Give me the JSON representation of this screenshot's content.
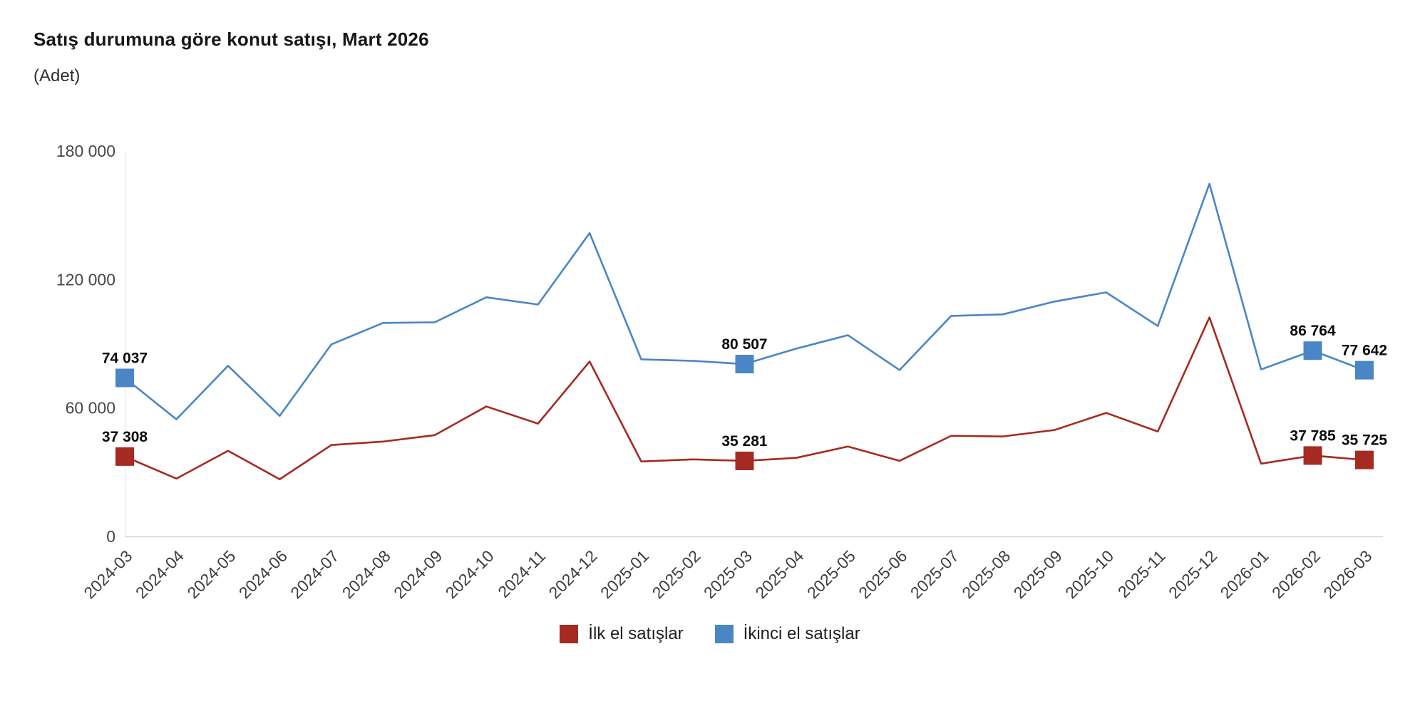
{
  "header": {
    "title": "Satış durumuna göre konut satışı, Mart 2026",
    "subtitle": "(Adet)"
  },
  "chart_data": {
    "type": "line",
    "title": "Satış durumuna göre konut satışı, Mart 2026",
    "ylabel": "(Adet)",
    "xlabel": "",
    "grid": false,
    "legend_position": "bottom",
    "ylim": [
      0,
      180000
    ],
    "yticks": [
      0,
      60000,
      120000,
      180000
    ],
    "ytick_labels": [
      "0",
      "60 000",
      "120 000",
      "180 000"
    ],
    "categories": [
      "2024-03",
      "2024-04",
      "2024-05",
      "2024-06",
      "2024-07",
      "2024-08",
      "2024-09",
      "2024-10",
      "2024-11",
      "2024-12",
      "2025-01",
      "2025-02",
      "2025-03",
      "2025-04",
      "2025-05",
      "2025-06",
      "2025-07",
      "2025-08",
      "2025-09",
      "2025-10",
      "2025-11",
      "2025-12",
      "2026-01",
      "2026-02",
      "2026-03"
    ],
    "series": [
      {
        "name": "İlk el satışlar",
        "color": "#a52a22",
        "values": [
          37308,
          27000,
          40000,
          26700,
          42700,
          44300,
          47300,
          60700,
          52700,
          81700,
          35000,
          36000,
          35281,
          36700,
          42000,
          35300,
          47000,
          46700,
          49700,
          57700,
          49000,
          102300,
          34000,
          37785,
          35725
        ],
        "labeled_points": {
          "0": "37 308",
          "12": "35 281",
          "23": "37 785",
          "24": "35 725"
        }
      },
      {
        "name": "İkinci el satışlar",
        "color": "#4a86c6",
        "values": [
          74037,
          54700,
          79700,
          56300,
          89700,
          99700,
          100000,
          111700,
          108300,
          141700,
          82700,
          82000,
          80507,
          87700,
          94000,
          77700,
          103000,
          103700,
          109700,
          114000,
          98300,
          164700,
          78000,
          86764,
          77642
        ],
        "labeled_points": {
          "0": "74 037",
          "12": "80 507",
          "23": "86 764",
          "24": "77 642"
        }
      }
    ]
  },
  "legend": {
    "items": [
      {
        "label": "İlk el satışlar",
        "color": "#a52a22"
      },
      {
        "label": "İkinci el satışlar",
        "color": "#4a86c6"
      }
    ]
  }
}
